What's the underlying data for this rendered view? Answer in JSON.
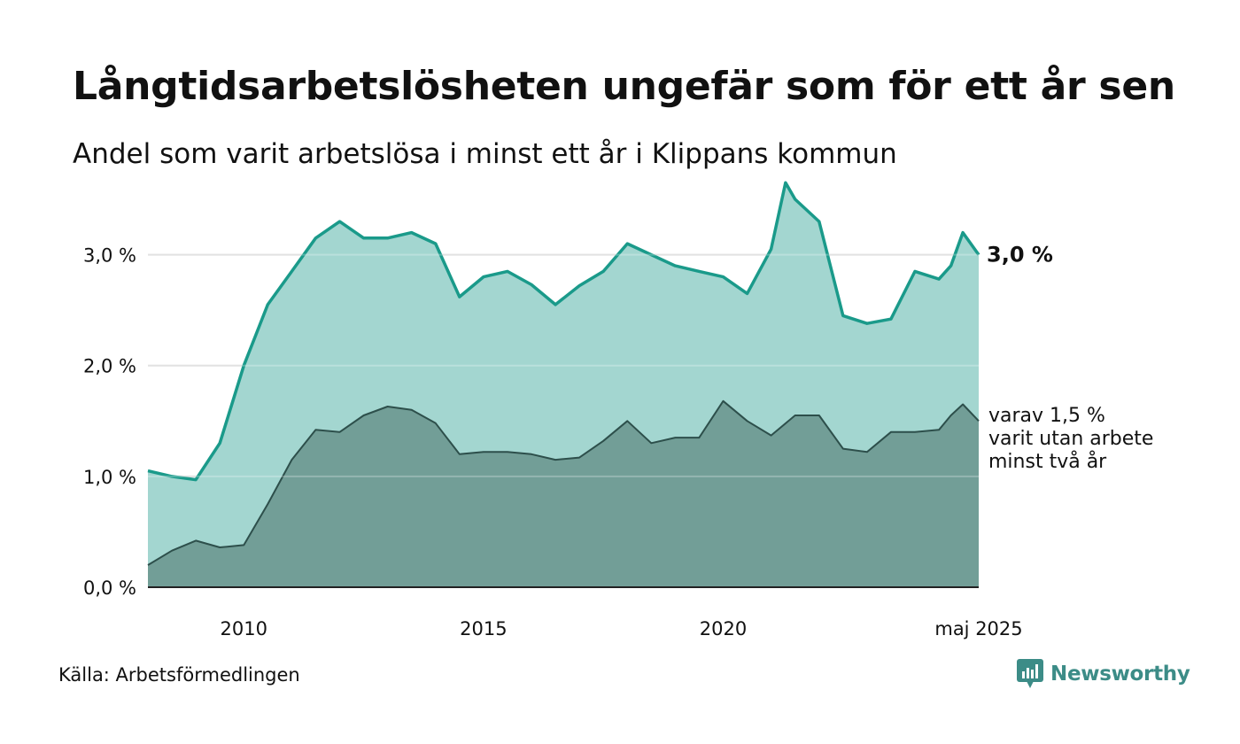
{
  "title": "Långtidsarbetslösheten ungefär som för ett år sen",
  "subtitle": "Andel som varit arbetslösa i minst ett år i Klippans kommun",
  "source": "Källa: Arbetsförmedlingen",
  "logo": {
    "text": "Newsworthy",
    "icon": "bar-chart-speech-icon"
  },
  "chart_data": {
    "type": "area",
    "ylim": [
      0,
      3.7
    ],
    "yticks": [
      0,
      1,
      2,
      3
    ],
    "ytick_labels": [
      "0,0 %",
      "1,0 %",
      "2,0 %",
      "3,0 %"
    ],
    "xlim": [
      2008.0,
      2025.33
    ],
    "xticks": [
      2010,
      2015,
      2020,
      2025.33
    ],
    "xtick_labels": [
      "2010",
      "2015",
      "2020",
      "maj 2025"
    ],
    "grid": true,
    "end_labels": {
      "main": "3,0 %",
      "sub": [
        "varav 1,5 %",
        "varit utan arbete",
        "minst två år"
      ]
    },
    "colors": {
      "main_line": "#1a9a8a",
      "main_fill": "#a3d6d0",
      "sub_line": "#2d4f4b",
      "sub_fill": "#729e97",
      "grid": "#d9d9d9",
      "axis": "#222222"
    },
    "series": [
      {
        "key": "main",
        "x": [
          2008.0,
          2008.5,
          2009.0,
          2009.5,
          2010.0,
          2010.5,
          2011.0,
          2011.5,
          2012.0,
          2012.5,
          2013.0,
          2013.5,
          2014.0,
          2014.5,
          2015.0,
          2015.5,
          2016.0,
          2016.5,
          2017.0,
          2017.5,
          2018.0,
          2018.5,
          2019.0,
          2019.5,
          2020.0,
          2020.5,
          2021.0,
          2021.3,
          2021.5,
          2022.0,
          2022.5,
          2023.0,
          2023.5,
          2024.0,
          2024.5,
          2024.75,
          2025.0,
          2025.33
        ],
        "values": [
          1.05,
          1.0,
          0.97,
          1.3,
          2.0,
          2.55,
          2.85,
          3.15,
          3.3,
          3.15,
          3.15,
          3.2,
          3.1,
          2.62,
          2.8,
          2.85,
          2.73,
          2.55,
          2.72,
          2.85,
          3.1,
          3.0,
          2.9,
          2.85,
          2.8,
          2.65,
          3.05,
          3.65,
          3.5,
          3.3,
          2.45,
          2.38,
          2.42,
          2.85,
          2.78,
          2.9,
          3.2,
          3.0
        ]
      },
      {
        "key": "sub",
        "x": [
          2008.0,
          2008.5,
          2009.0,
          2009.5,
          2010.0,
          2010.5,
          2011.0,
          2011.5,
          2012.0,
          2012.5,
          2013.0,
          2013.5,
          2014.0,
          2014.5,
          2015.0,
          2015.5,
          2016.0,
          2016.5,
          2017.0,
          2017.5,
          2018.0,
          2018.5,
          2019.0,
          2019.5,
          2020.0,
          2020.5,
          2021.0,
          2021.5,
          2022.0,
          2022.5,
          2023.0,
          2023.5,
          2024.0,
          2024.5,
          2024.75,
          2025.0,
          2025.33
        ],
        "values": [
          0.2,
          0.33,
          0.42,
          0.36,
          0.38,
          0.75,
          1.15,
          1.42,
          1.4,
          1.55,
          1.63,
          1.6,
          1.48,
          1.2,
          1.22,
          1.22,
          1.2,
          1.15,
          1.17,
          1.32,
          1.5,
          1.3,
          1.35,
          1.35,
          1.68,
          1.5,
          1.37,
          1.55,
          1.55,
          1.25,
          1.22,
          1.4,
          1.4,
          1.42,
          1.55,
          1.65,
          1.5
        ]
      }
    ]
  }
}
